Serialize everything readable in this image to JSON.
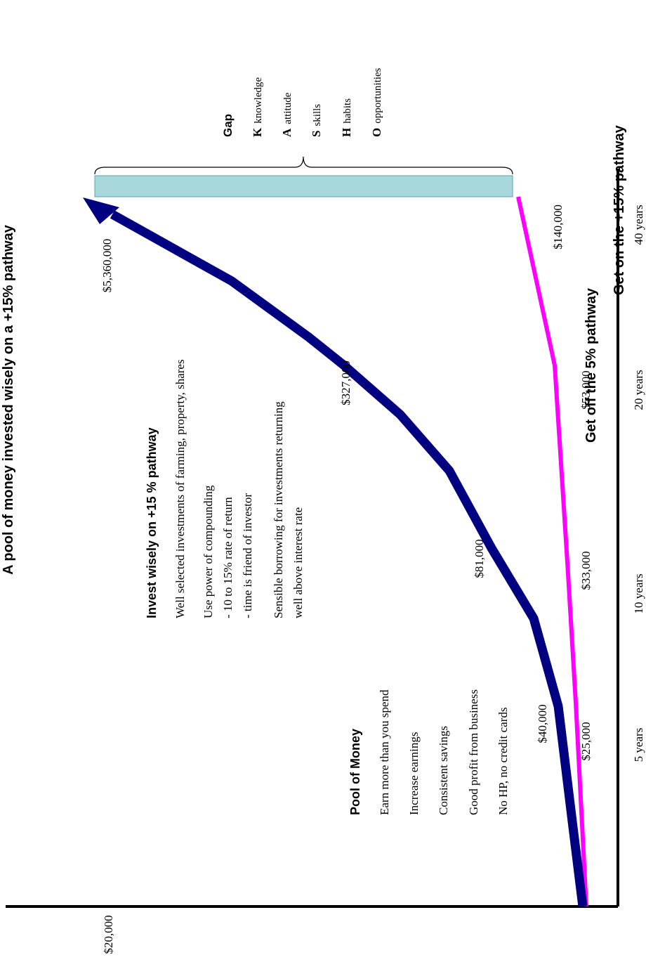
{
  "title": "A pool of money invested wisely on a +15% pathway",
  "origin_label": "$20,000",
  "x_labels": [
    "5 years",
    "10 years",
    "20 years",
    "40 years"
  ],
  "upper_pathway": {
    "heading": "Get on the +15% pathway",
    "labels": [
      "$40,000",
      "$81,000",
      "$327,000",
      "$5,360,000"
    ]
  },
  "lower_pathway": {
    "heading": "Get off the 5% pathway",
    "labels": [
      "$25,000",
      "$33,000",
      "$53,000",
      "$140,000"
    ]
  },
  "gap": {
    "title": "Gap",
    "items": [
      {
        "letter": "K",
        "text": "knowledge"
      },
      {
        "letter": "A",
        "text": "attitude"
      },
      {
        "letter": "S",
        "text": "skills"
      },
      {
        "letter": "H",
        "text": "habits"
      },
      {
        "letter": "O",
        "text": "opportunities"
      }
    ]
  },
  "pool": {
    "title": "Pool of Money",
    "items": [
      "Earn more than you spend",
      "Increase earnings",
      "Consistent savings",
      "Good profit from business",
      "No HP, no credit cards"
    ]
  },
  "invest": {
    "title": "Invest wisely on +15 % pathway",
    "lines": [
      "Well selected investments of farming, property, shares",
      "Use power of compounding",
      "- 10 to 15% rate of return",
      "- time is friend of investor",
      "Sensible borrowing for investments returning",
      "well above interest rate"
    ]
  }
}
